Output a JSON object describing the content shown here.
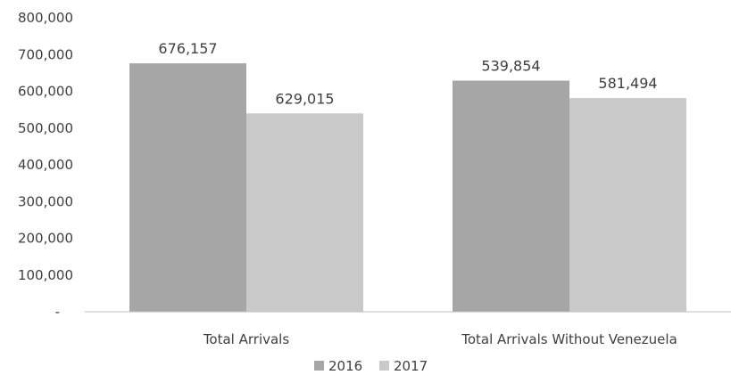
{
  "chart_data": {
    "type": "bar",
    "categories": [
      "Total Arrivals",
      "Total Arrivals Without Venezuela"
    ],
    "series": [
      {
        "name": "2016",
        "values": [
          676157,
          629015
        ],
        "color": "#a6a6a6"
      },
      {
        "name": "2017",
        "values": [
          539854,
          581494
        ],
        "color": "#c9c9c9"
      }
    ],
    "data_labels": [
      [
        "676,157",
        "629,015"
      ],
      [
        "539,854",
        "581,494"
      ]
    ],
    "yticks": [
      "-",
      "100,000",
      "200,000",
      "300,000",
      "400,000",
      "500,000",
      "600,000",
      "700,000",
      "800,000"
    ],
    "ylim": [
      0,
      800000
    ],
    "grid": false,
    "legend_position": "bottom",
    "title": "",
    "xlabel": "",
    "ylabel": ""
  }
}
